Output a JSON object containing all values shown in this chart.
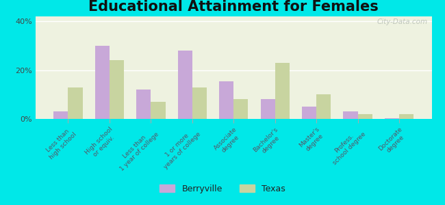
{
  "title": "Educational Attainment for Females",
  "categories": [
    "Less than\nhigh school",
    "High school\nor equiv.",
    "Less than\n1 year of college",
    "1 or more\nyears of college",
    "Associate\ndegree",
    "Bachelor's\ndegree",
    "Master's\ndegree",
    "Profess.\nschool degree",
    "Doctorate\ndegree"
  ],
  "berryville": [
    3.0,
    30.0,
    12.0,
    28.0,
    15.5,
    8.0,
    5.0,
    3.0,
    0.2
  ],
  "texas": [
    13.0,
    24.0,
    7.0,
    13.0,
    8.0,
    23.0,
    10.0,
    2.0,
    2.0
  ],
  "berryville_color": "#c8a8d8",
  "texas_color": "#c8d4a0",
  "background_outer": "#00e8e8",
  "background_inner": "#eef2e0",
  "ylim": [
    0,
    42
  ],
  "yticks": [
    0,
    20,
    40
  ],
  "ytick_labels": [
    "0%",
    "20%",
    "40%"
  ],
  "title_fontsize": 15,
  "bar_width": 0.35,
  "legend_berryville": "Berryville",
  "legend_texas": "Texas"
}
